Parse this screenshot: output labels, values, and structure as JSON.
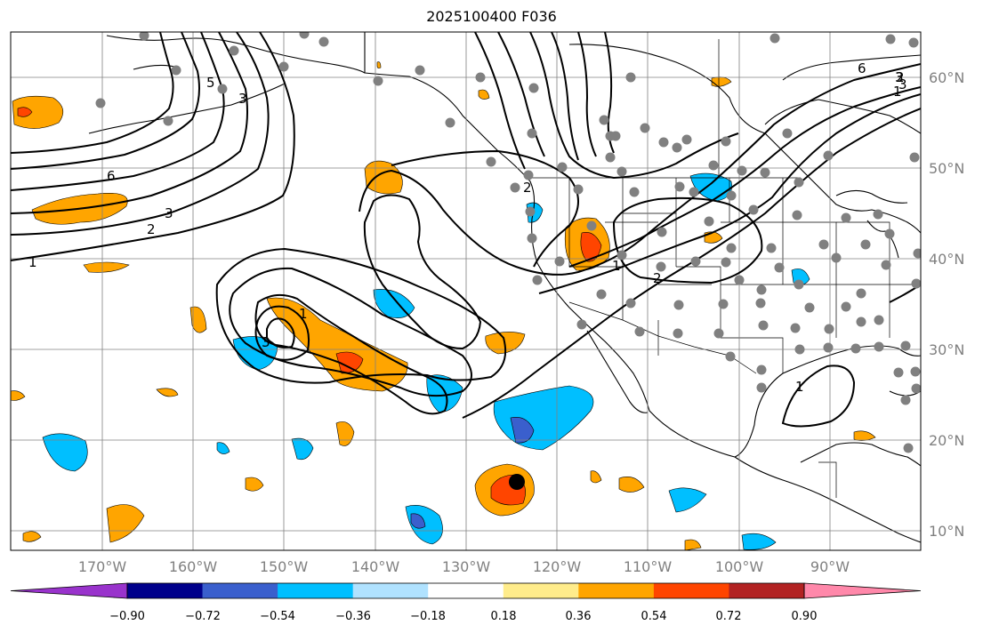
{
  "title": "2025100400 F036",
  "map": {
    "lat_labels": [
      "60°N",
      "50°N",
      "40°N",
      "30°N",
      "20°N",
      "10°N"
    ],
    "lon_labels": [
      "170°W",
      "160°W",
      "150°W",
      "140°W",
      "130°W",
      "120°W",
      "110°W",
      "100°W",
      "90°W"
    ],
    "contour_labels": [
      "1",
      "2",
      "3",
      "6",
      "3",
      "2",
      "1",
      "2",
      "3",
      "6",
      "3",
      "1",
      "1",
      "2",
      "5",
      "3",
      "1"
    ]
  },
  "colorbar": {
    "tick_labels": [
      "−0.90",
      "−0.72",
      "−0.54",
      "−0.36",
      "−0.18",
      "0.18",
      "0.36",
      "0.54",
      "0.72",
      "0.90"
    ],
    "bins": [
      {
        "color": "#9933cc"
      },
      {
        "color": "#00008b"
      },
      {
        "color": "#3a5fcd"
      },
      {
        "color": "#00bfff"
      },
      {
        "color": "#b0e2ff"
      },
      {
        "color": "#ffffff"
      },
      {
        "color": "#ffec8b"
      },
      {
        "color": "#ffa500"
      },
      {
        "color": "#ff4500"
      },
      {
        "color": "#b22222"
      },
      {
        "color": "#ff88aa"
      }
    ]
  },
  "colors": {
    "land_outline": "#000000",
    "grid": "#808080",
    "station": "#808080",
    "storm_marker": "#000000"
  }
}
